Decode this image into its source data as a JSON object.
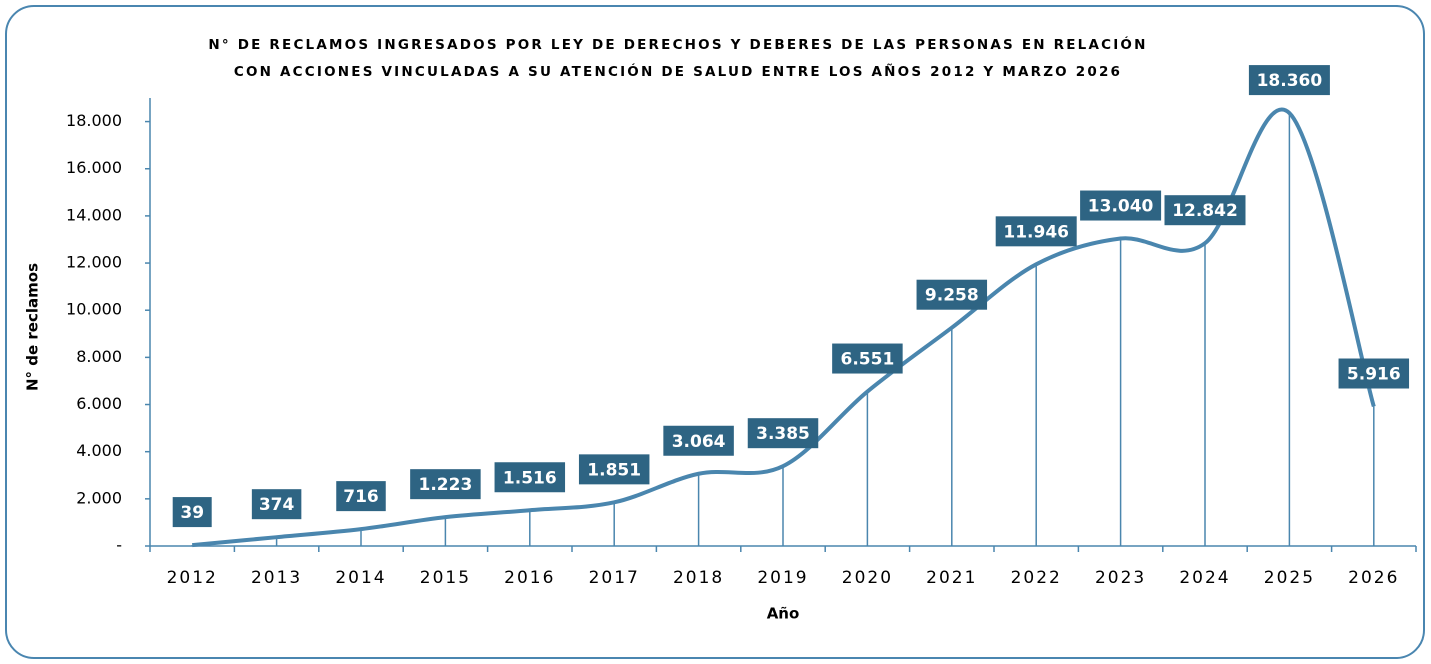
{
  "chart_data": {
    "type": "line",
    "title": [
      "N° DE RECLAMOS INGRESADOS POR LEY DE DERECHOS Y DEBERES DE LAS PERSONAS EN RELACIÓN",
      "CON ACCIONES VINCULADAS A SU ATENCIÓN DE SALUD ENTRE LOS AÑOS 2012  Y MARZO 2026"
    ],
    "x_label": "Año",
    "y_label": "N° de reclamos",
    "categories": [
      "2012",
      "2013",
      "2014",
      "2015",
      "2016",
      "2017",
      "2018",
      "2019",
      "2020",
      "2021",
      "2022",
      "2023",
      "2024",
      "2025",
      "2026"
    ],
    "values": [
      39,
      374,
      716,
      1223,
      1516,
      1851,
      3064,
      3385,
      6551,
      9258,
      11946,
      13040,
      12842,
      18360,
      5916
    ],
    "value_labels": [
      "39",
      "374",
      "716",
      "1.223",
      "1.516",
      "1.851",
      "3.064",
      "3.385",
      "6.551",
      "9.258",
      "11.946",
      "13.040",
      "12.842",
      "18.360",
      "5.916"
    ],
    "color": "#4a86ae",
    "label_color": "#2e6483",
    "ylim": [
      0,
      19000
    ],
    "yticks": [
      {
        "value": 0,
        "label": "-"
      },
      {
        "value": 2000,
        "label": "2.000"
      },
      {
        "value": 4000,
        "label": "4.000"
      },
      {
        "value": 6000,
        "label": "6.000"
      },
      {
        "value": 8000,
        "label": "8.000"
      },
      {
        "value": 10000,
        "label": "10.000"
      },
      {
        "value": 12000,
        "label": "12.000"
      },
      {
        "value": 14000,
        "label": "14.000"
      },
      {
        "value": 16000,
        "label": "16.000"
      },
      {
        "value": 18000,
        "label": "18.000"
      }
    ],
    "grid": false
  }
}
